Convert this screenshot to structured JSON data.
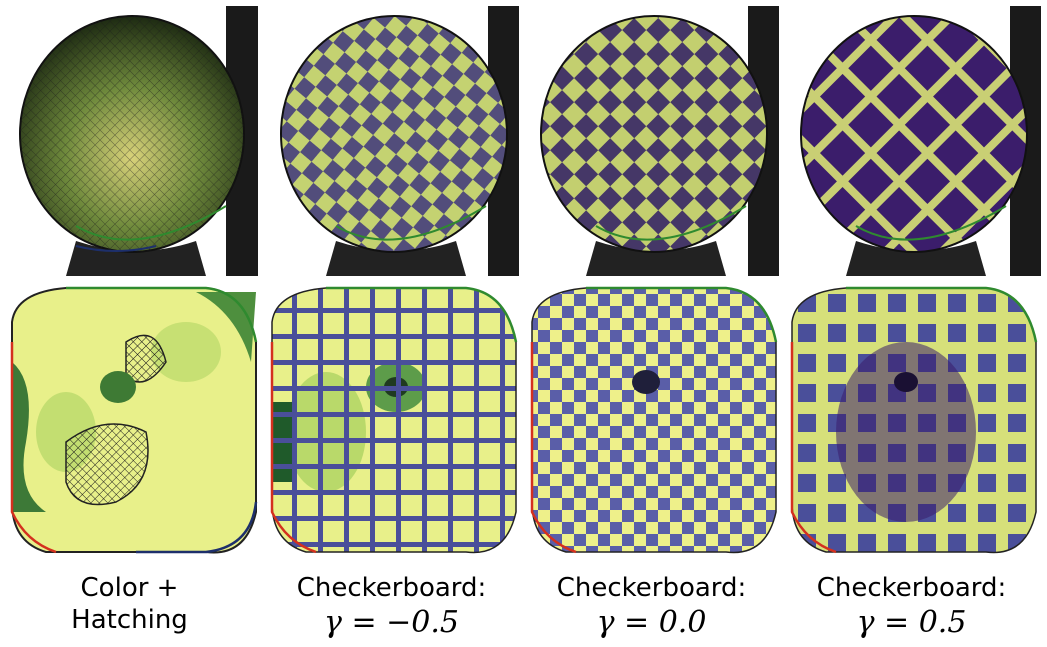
{
  "captions": [
    {
      "line1": "Color +",
      "line2": "Hatching"
    },
    {
      "line1": "Checkerboard:",
      "line2": "γ = −0.5"
    },
    {
      "line1": "Checkerboard:",
      "line2": "γ = 0.0"
    },
    {
      "line1": "Checkerboard:",
      "line2": "γ = 0.5"
    }
  ],
  "colors": {
    "dark_purple": "#3b1d6b",
    "blue": "#4a4f9a",
    "yellow": "#eef08a",
    "light_green": "#b9d96a",
    "green": "#5d9c4a",
    "dark_green": "#1f5a2a",
    "boundary_red": "#d4301e",
    "boundary_blue": "#1d2f6b",
    "boundary_green": "#2f8a2f",
    "background_gray": "#1a1a1a"
  }
}
